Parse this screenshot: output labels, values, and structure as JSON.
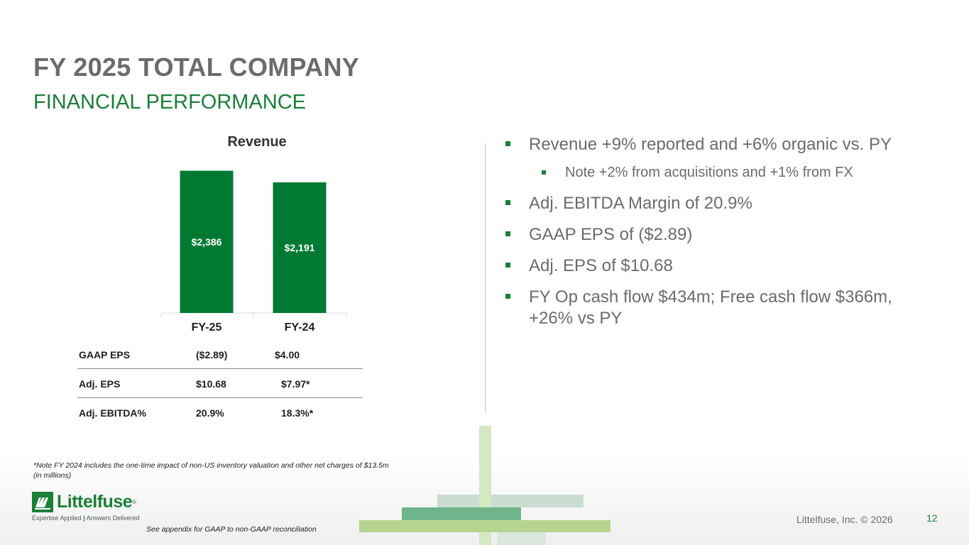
{
  "slide": {
    "title": "FY 2025 TOTAL COMPANY",
    "subtitle": "FINANCIAL PERFORMANCE"
  },
  "chart_data": {
    "type": "bar",
    "title": "Revenue",
    "categories": [
      "FY-25",
      "FY-24"
    ],
    "values": [
      2386,
      2191
    ],
    "data_labels": [
      "$2,386",
      "$2,191"
    ],
    "ylim": [
      0,
      2500
    ],
    "grid": false,
    "bar_color": "#007a33"
  },
  "metrics": [
    {
      "label": "GAAP EPS",
      "fy25": "($2.89)",
      "fy24": "$4.00"
    },
    {
      "label": "Adj. EPS",
      "fy25": "$10.68",
      "fy24": "$7.97*"
    },
    {
      "label": "Adj. EBITDA%",
      "fy25": "20.9%",
      "fy24": "18.3%*"
    }
  ],
  "bullets": [
    {
      "level": 1,
      "text": "Revenue +9% reported and +6% organic vs. PY"
    },
    {
      "level": 2,
      "text": "Note +2% from acquisitions and +1% from FX"
    },
    {
      "level": 1,
      "text": "Adj. EBITDA Margin of 20.9%"
    },
    {
      "level": 1,
      "text": "GAAP EPS of ($2.89)"
    },
    {
      "level": 1,
      "text": "Adj. EPS of $10.68"
    },
    {
      "level": 1,
      "text": "FY Op cash flow $434m; Free cash flow $366m, +26% vs PY"
    }
  ],
  "footnote": {
    "line1": "*Note FY 2024 includes the one-time impact of non-US inventory valuation and other net charges of $13.5m",
    "line2": "(in millions)"
  },
  "appendix_note": "See appendix for GAAP to non-GAAP reconciliation",
  "footer": {
    "logo_name": "Littelfuse",
    "logo_registered": "®",
    "logo_tagline_left": "Expertise Applied",
    "logo_tagline_right": "Answers Delivered",
    "copyright": "Littelfuse, Inc. © 2026",
    "page_number": "12"
  },
  "colors": {
    "brand_green": "#1a7f37",
    "title_gray": "#6b6b6b"
  }
}
